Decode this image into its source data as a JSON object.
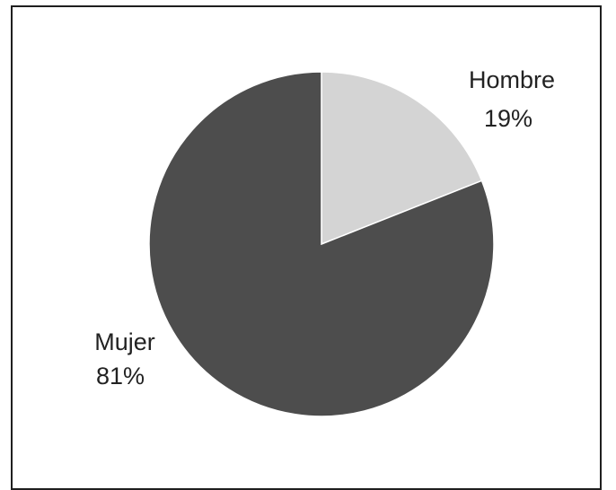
{
  "chart_data": {
    "type": "pie",
    "title": "",
    "categories": [
      "Hombre",
      "Mujer"
    ],
    "values": [
      19,
      81
    ],
    "value_labels": [
      "19%",
      "81%"
    ],
    "colors": [
      "#d4d4d4",
      "#4d4d4d"
    ],
    "stroke_color": "#ffffff",
    "start_angle_deg": 0,
    "direction": "clockwise",
    "legend": "none"
  }
}
